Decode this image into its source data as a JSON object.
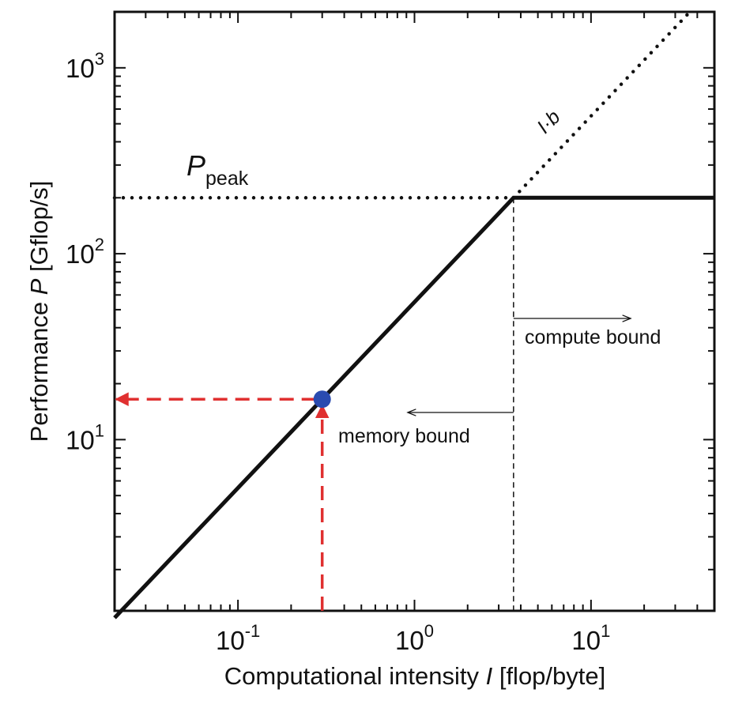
{
  "chart_data": {
    "type": "line",
    "scale": "log-log",
    "title": "",
    "xlabel": {
      "prefix": "Computational intensity ",
      "symbol": "I",
      "suffix": " [flop/byte]"
    },
    "ylabel": {
      "prefix": "Performance ",
      "symbol": "P",
      "suffix": " [Gflop/s]"
    },
    "xlim": [
      0.02,
      50
    ],
    "ylim": [
      1.2,
      2000
    ],
    "x_ticks": [
      {
        "base": "10",
        "exp": "-1",
        "value": 0.1
      },
      {
        "base": "10",
        "exp": "0",
        "value": 1
      },
      {
        "base": "10",
        "exp": "1",
        "value": 10
      }
    ],
    "y_ticks": [
      {
        "base": "10",
        "exp": "1",
        "value": 10
      },
      {
        "base": "10",
        "exp": "2",
        "value": 100
      },
      {
        "base": "10",
        "exp": "3",
        "value": 1000
      }
    ],
    "bandwidth_b": 55,
    "peak_performance": 200,
    "ridge_point_x": 3.64,
    "series": [
      {
        "role": "roofline",
        "style": "solid",
        "points": [
          [
            0.02,
            1.1
          ],
          [
            3.64,
            200
          ],
          [
            50,
            200
          ]
        ]
      },
      {
        "role": "peak-extension",
        "style": "dotted",
        "points": [
          [
            0.02,
            200
          ],
          [
            3.64,
            200
          ]
        ]
      },
      {
        "role": "bandwidth-extension",
        "style": "dotted",
        "points": [
          [
            3.64,
            200
          ],
          [
            36,
            1980
          ]
        ]
      }
    ],
    "example_point": {
      "x": 0.3,
      "y": 16.5
    },
    "annotations": {
      "peak_label": {
        "base": "P",
        "sub": "peak"
      },
      "bandwidth_label": "I·b",
      "compute_bound": "compute bound",
      "memory_bound": "memory bound"
    },
    "colors": {
      "roofline": "#111111",
      "marker": "#2a4bb0",
      "projection": "#e03030"
    },
    "grid": false,
    "legend": "none"
  }
}
